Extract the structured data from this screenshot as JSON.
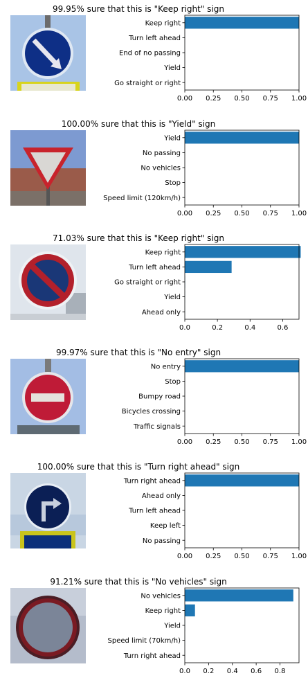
{
  "colors": {
    "bar": "#1f77b4",
    "axis": "#000000"
  },
  "panels": [
    {
      "title": "99.95% sure that this is \"Keep right\" sign",
      "sign_icon": "keep-right-sign-icon"
    },
    {
      "title": "100.00% sure that this is \"Yield\" sign",
      "sign_icon": "yield-sign-icon"
    },
    {
      "title": "71.03% sure that this is \"Keep right\" sign",
      "sign_icon": "no-parking-sign-icon"
    },
    {
      "title": "99.97% sure that this is \"No entry\" sign",
      "sign_icon": "no-entry-sign-icon"
    },
    {
      "title": "100.00% sure that this is \"Turn right ahead\" sign",
      "sign_icon": "turn-right-ahead-sign-icon"
    },
    {
      "title": "91.21% sure that this is \"No vehicles\" sign",
      "sign_icon": "no-vehicles-sign-icon"
    }
  ],
  "chart_data": [
    {
      "type": "bar",
      "orientation": "horizontal",
      "categories": [
        "Keep right",
        "Turn left ahead",
        "End of no passing",
        "Yield",
        "Go straight or right"
      ],
      "values": [
        0.9995,
        0.0004,
        0.0001,
        0.0,
        0.0
      ],
      "xlim": [
        0,
        1.0
      ],
      "xticks": [
        "0.00",
        "0.25",
        "0.50",
        "0.75",
        "1.00"
      ]
    },
    {
      "type": "bar",
      "orientation": "horizontal",
      "categories": [
        "Yield",
        "No passing",
        "No vehicles",
        "Stop",
        "Speed limit (120km/h)"
      ],
      "values": [
        1.0,
        0.0,
        0.0,
        0.0,
        0.0
      ],
      "xlim": [
        0,
        1.0
      ],
      "xticks": [
        "0.00",
        "0.25",
        "0.50",
        "0.75",
        "1.00"
      ]
    },
    {
      "type": "bar",
      "orientation": "horizontal",
      "categories": [
        "Keep right",
        "Turn left ahead",
        "Go straight or right",
        "Yield",
        "Ahead only"
      ],
      "values": [
        0.7103,
        0.2869,
        0.0018,
        0.0006,
        0.0002
      ],
      "xlim": [
        0,
        0.7
      ],
      "xticks": [
        "0.0",
        "0.2",
        "0.4",
        "0.6"
      ]
    },
    {
      "type": "bar",
      "orientation": "horizontal",
      "categories": [
        "No entry",
        "Stop",
        "Bumpy road",
        "Bicycles crossing",
        "Traffic signals"
      ],
      "values": [
        0.9997,
        0.0002,
        0.0001,
        0.0,
        0.0
      ],
      "xlim": [
        0,
        1.0
      ],
      "xticks": [
        "0.00",
        "0.25",
        "0.50",
        "0.75",
        "1.00"
      ]
    },
    {
      "type": "bar",
      "orientation": "horizontal",
      "categories": [
        "Turn right ahead",
        "Ahead only",
        "Turn left ahead",
        "Keep left",
        "No passing"
      ],
      "values": [
        1.0,
        0.0,
        0.0,
        0.0,
        0.0
      ],
      "xlim": [
        0,
        1.0
      ],
      "xticks": [
        "0.00",
        "0.25",
        "0.50",
        "0.75",
        "1.00"
      ]
    },
    {
      "type": "bar",
      "orientation": "horizontal",
      "categories": [
        "No vehicles",
        "Keep right",
        "Yield",
        "Speed limit (70km/h)",
        "Turn right ahead"
      ],
      "values": [
        0.9121,
        0.0856,
        0.0015,
        0.0005,
        0.0003
      ],
      "xlim": [
        0,
        0.96
      ],
      "xticks": [
        "0.0",
        "0.2",
        "0.4",
        "0.6",
        "0.8"
      ]
    }
  ]
}
